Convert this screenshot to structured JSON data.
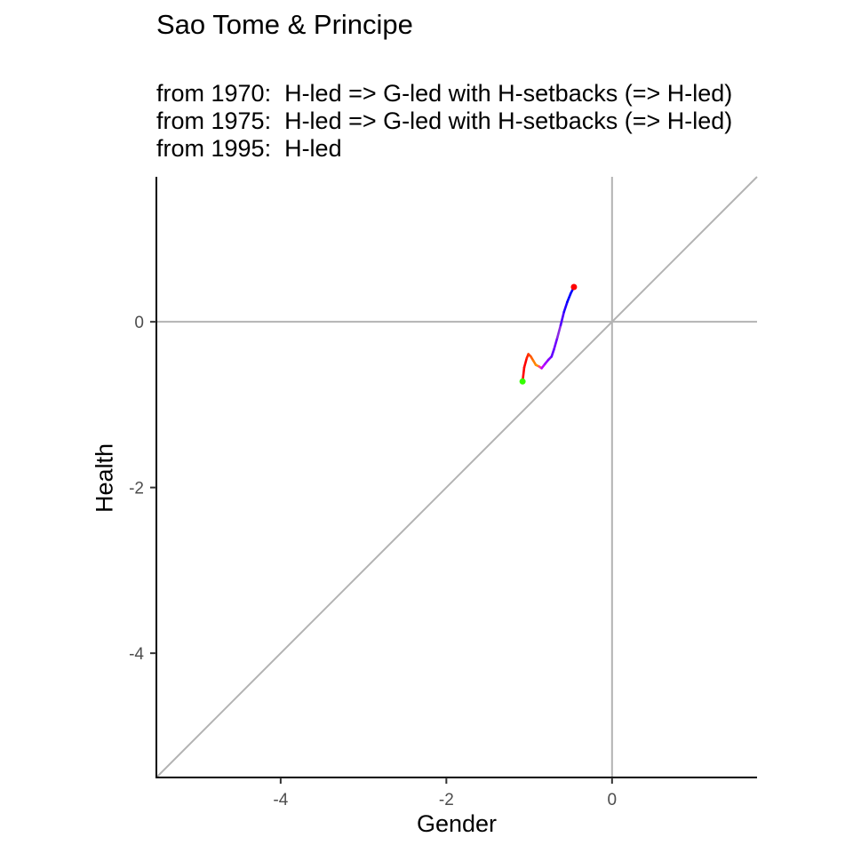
{
  "chart_data": {
    "type": "line",
    "title": "Sao Tome & Principe",
    "subtitle_lines": [
      "from 1970:  H-led => G-led with H-setbacks (=> H-led)",
      "from 1975:  H-led => G-led with H-setbacks (=> H-led)",
      "from 1995:  H-led"
    ],
    "xlabel": "Gender",
    "ylabel": "Health",
    "xlim": [
      -5.5,
      1.75
    ],
    "ylim": [
      -5.5,
      1.75
    ],
    "x_ticks": [
      -4,
      -2,
      0
    ],
    "y_ticks": [
      -4,
      -2,
      0
    ],
    "x_tick_labels": [
      "-4",
      "-2",
      "0"
    ],
    "y_tick_labels": [
      "-4",
      "-2",
      "0"
    ],
    "grid": false,
    "reference_lines": [
      "x=0",
      "y=0",
      "y=x"
    ],
    "reference_color": "#b3b3b3",
    "path": {
      "x": [
        -1.08,
        -1.06,
        -1.03,
        -1.01,
        -0.98,
        -0.95,
        -0.92,
        -0.88,
        -0.85,
        -0.81,
        -0.77,
        -0.73,
        -0.7,
        -0.66,
        -0.62,
        -0.58,
        -0.54,
        -0.5,
        -0.46
      ],
      "y": [
        -0.72,
        -0.55,
        -0.44,
        -0.39,
        -0.42,
        -0.47,
        -0.52,
        -0.54,
        -0.56,
        -0.51,
        -0.46,
        -0.42,
        -0.33,
        -0.19,
        -0.04,
        0.12,
        0.24,
        0.34,
        0.42
      ],
      "colors": [
        "#ff0000",
        "#ff0000",
        "#ff2000",
        "#ff3d00",
        "#ff6000",
        "#ff8000",
        "#ff9000",
        "#ff4080",
        "#c000ff",
        "#a000ff",
        "#8000ff",
        "#6000ff",
        "#7000ff",
        "#8a2be2",
        "#5000ff",
        "#2000ff",
        "#0000ff",
        "#0000ff"
      ]
    },
    "start_point": {
      "x": -1.08,
      "y": -0.72,
      "color": "#33ff00"
    },
    "end_point": {
      "x": -0.46,
      "y": 0.42,
      "color": "#ff0000"
    }
  }
}
